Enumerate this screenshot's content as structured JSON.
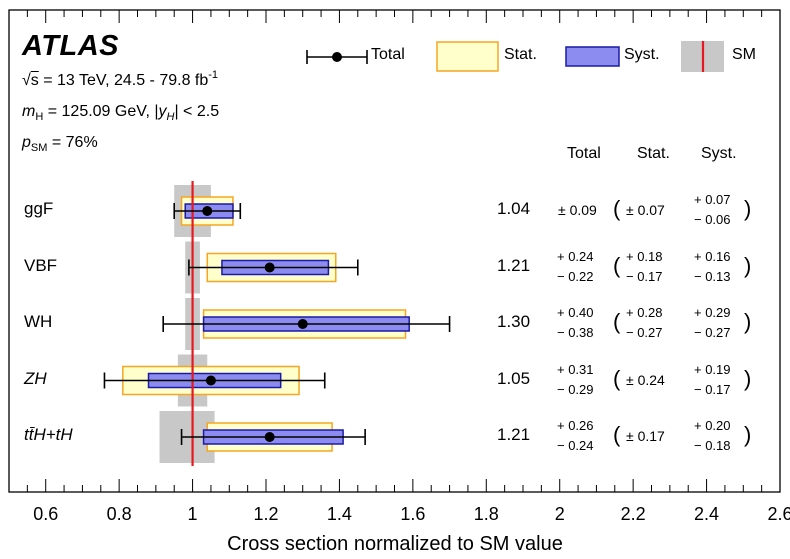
{
  "header": {
    "experiment": "ATLAS",
    "energy_sqrt": "s",
    "energy_rest": " = 13 TeV, 24.5 - 79.8 fb",
    "energy_sup": "-1",
    "mass_sym": "m",
    "mass_sub": "H",
    "mass_rest": " = 125.09 GeV, |",
    "rap_sym": "y",
    "rap_sub": "H",
    "rap_rest": "| < 2.5",
    "p_sym": "p",
    "p_sub": "SM",
    "p_rest": " = 76%"
  },
  "legend": {
    "total": "Total",
    "stat": "Stat.",
    "syst": "Syst.",
    "sm": "SM"
  },
  "columns": {
    "total": "Total",
    "stat": "Stat.",
    "syst": "Syst."
  },
  "colors": {
    "stat_fill": "#ffffcc",
    "stat_edge": "#f5a623",
    "syst_fill": "#8c8cf0",
    "syst_edge": "#1a1aa6",
    "sm_band": "#c8c8c8",
    "sm_line": "#e8191e"
  },
  "chart_data": {
    "type": "scatter",
    "xlabel": "Cross section normalized to SM value",
    "xlim": [
      0.5,
      2.6
    ],
    "xticks": [
      "0.6",
      "0.8",
      "1",
      "1.2",
      "1.4",
      "1.6",
      "1.8",
      "2",
      "2.2",
      "2.4",
      "2.6"
    ],
    "sm_value": 1.0,
    "rows": [
      {
        "label": "ggF",
        "value": 1.04,
        "value_text": "1.04",
        "total_up": 0.09,
        "total_dn": 0.09,
        "stat_up": 0.07,
        "stat_dn": 0.07,
        "syst_up": 0.07,
        "syst_dn": 0.06,
        "sm_unc_up": 0.05,
        "sm_unc_dn": 0.05,
        "total_sym": "± 0.09",
        "stat_sym": "± 0.07",
        "total_up_text": "",
        "total_dn_text": "",
        "stat_up_text": "",
        "stat_dn_text": "",
        "syst_up_text": "+ 0.07",
        "syst_dn_text": "− 0.06"
      },
      {
        "label": "VBF",
        "value": 1.21,
        "value_text": "1.21",
        "total_up": 0.24,
        "total_dn": 0.22,
        "stat_up": 0.18,
        "stat_dn": 0.17,
        "syst_up": 0.16,
        "syst_dn": 0.13,
        "sm_unc_up": 0.02,
        "sm_unc_dn": 0.02,
        "total_sym": "",
        "stat_sym": "",
        "total_up_text": "+ 0.24",
        "total_dn_text": "− 0.22",
        "stat_up_text": "+ 0.18",
        "stat_dn_text": "− 0.17",
        "syst_up_text": "+ 0.16",
        "syst_dn_text": "− 0.13"
      },
      {
        "label": "WH",
        "value": 1.3,
        "value_text": "1.30",
        "total_up": 0.4,
        "total_dn": 0.38,
        "stat_up": 0.28,
        "stat_dn": 0.27,
        "syst_up": 0.29,
        "syst_dn": 0.27,
        "sm_unc_up": 0.02,
        "sm_unc_dn": 0.02,
        "total_sym": "",
        "stat_sym": "",
        "total_up_text": "+ 0.40",
        "total_dn_text": "− 0.38",
        "stat_up_text": "+ 0.28",
        "stat_dn_text": "− 0.27",
        "syst_up_text": "+ 0.29",
        "syst_dn_text": "− 0.27"
      },
      {
        "label": "ZH",
        "italic": true,
        "value": 1.05,
        "value_text": "1.05",
        "total_up": 0.31,
        "total_dn": 0.29,
        "stat_up": 0.24,
        "stat_dn": 0.24,
        "syst_up": 0.19,
        "syst_dn": 0.17,
        "sm_unc_up": 0.04,
        "sm_unc_dn": 0.04,
        "total_sym": "",
        "stat_sym": "± 0.24",
        "total_up_text": "+ 0.31",
        "total_dn_text": "− 0.29",
        "stat_up_text": "",
        "stat_dn_text": "",
        "syst_up_text": "+ 0.19",
        "syst_dn_text": "− 0.17"
      },
      {
        "label": "tt̄H+tH",
        "italic": true,
        "value": 1.21,
        "value_text": "1.21",
        "total_up": 0.26,
        "total_dn": 0.24,
        "stat_up": 0.17,
        "stat_dn": 0.17,
        "syst_up": 0.2,
        "syst_dn": 0.18,
        "sm_unc_up": 0.06,
        "sm_unc_dn": 0.09,
        "total_sym": "",
        "stat_sym": "± 0.17",
        "total_up_text": "+ 0.26",
        "total_dn_text": "− 0.24",
        "stat_up_text": "",
        "stat_dn_text": "",
        "syst_up_text": "+ 0.20",
        "syst_dn_text": "− 0.18"
      }
    ]
  }
}
